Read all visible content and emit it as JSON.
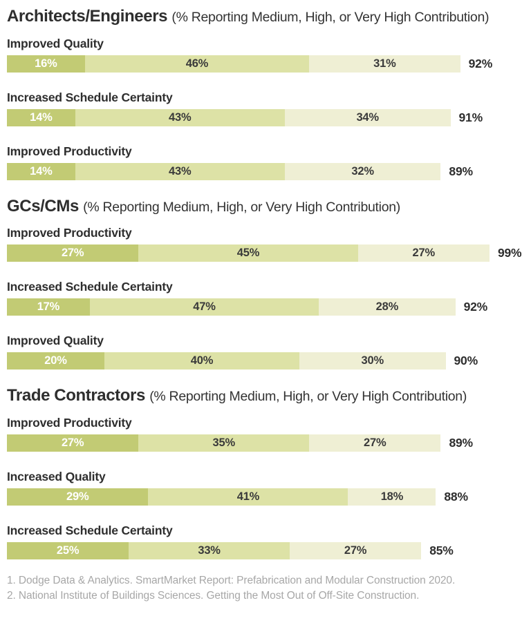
{
  "colors": {
    "segment_dark": "#c2cb74",
    "segment_medium": "#dde2a6",
    "segment_light": "#efefd4",
    "segment_dark_text": "#ffffff",
    "segment_text": "#3a3a3a",
    "heading_text": "#2e2e2e",
    "footnote_text": "#a7a7a7",
    "background": "#ffffff"
  },
  "chart_data": {
    "type": "bar",
    "variant": "horizontal-stacked",
    "unit": "%",
    "xlim": [
      0,
      100
    ],
    "grid": false,
    "legend": "none",
    "segment_colors": [
      "#c2cb74",
      "#dde2a6",
      "#efefd4"
    ],
    "sections": [
      {
        "title": "Architects/Engineers",
        "subtitle": "(% Reporting Medium, High, or Very High Contribution)",
        "rows": [
          {
            "label": "Improved Quality",
            "segments": [
              16,
              46,
              31
            ],
            "total": 92
          },
          {
            "label": "Increased Schedule Certainty",
            "segments": [
              14,
              43,
              34
            ],
            "total": 91
          },
          {
            "label": "Improved Productivity",
            "segments": [
              14,
              43,
              32
            ],
            "total": 89
          }
        ]
      },
      {
        "title": "GCs/CMs",
        "subtitle": "(% Reporting Medium, High, or Very High Contribution)",
        "rows": [
          {
            "label": "Improved Productivity",
            "segments": [
              27,
              45,
              27
            ],
            "total": 99
          },
          {
            "label": "Increased Schedule Certainty",
            "segments": [
              17,
              47,
              28
            ],
            "total": 92
          },
          {
            "label": "Improved Quality",
            "segments": [
              20,
              40,
              30
            ],
            "total": 90
          }
        ]
      },
      {
        "title": "Trade Contractors",
        "subtitle": "(% Reporting Medium, High, or Very High Contribution)",
        "rows": [
          {
            "label": "Improved Productivity",
            "segments": [
              27,
              35,
              27
            ],
            "total": 89
          },
          {
            "label": "Increased Quality",
            "segments": [
              29,
              41,
              18
            ],
            "total": 88
          },
          {
            "label": "Increased Schedule Certainty",
            "segments": [
              25,
              33,
              27
            ],
            "total": 85
          }
        ]
      }
    ]
  },
  "footnotes": [
    "1. Dodge Data & Analytics. SmartMarket Report: Prefabrication and Modular Construction 2020.",
    "2. National Institute of Buildings Sciences. Getting the Most Out of Off-Site Construction."
  ]
}
